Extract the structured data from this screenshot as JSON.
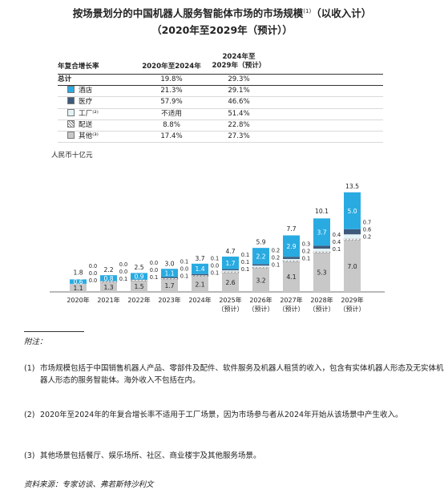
{
  "title_line1": "按场景划分的中国机器人服务智能体市场的市场规模",
  "title_sup": "(1)",
  "title_tail": "（以收入计）",
  "title_line2": "（2020年至2029年（预计））",
  "cagr_table": {
    "col0": "年复合增长率",
    "col1": "2020年至2024年",
    "col2_a": "2024年至",
    "col2_b": "2029年（预计）",
    "rows": [
      {
        "label": "总计",
        "v1": "19.8%",
        "v2": "29.3%"
      },
      {
        "label": "酒店",
        "v1": "21.3%",
        "v2": "29.1%",
        "color": "#29abe2"
      },
      {
        "label": "医疗",
        "v1": "57.9%",
        "v2": "46.6%",
        "color": "#3e5a7c"
      },
      {
        "label": "工厂⁽²⁾",
        "v1": "不适用",
        "v2": "51.4%",
        "color": "#e4f3f6"
      },
      {
        "label": "配送",
        "v1": "8.8%",
        "v2": "22.8%",
        "pattern": "hatch"
      },
      {
        "label": "其他⁽³⁾",
        "v1": "17.4%",
        "v2": "27.3%",
        "color": "#c8c8c8"
      }
    ]
  },
  "chart_data": {
    "type": "bar",
    "stacked": true,
    "ylabel": "人民币十亿元",
    "categories": [
      "2020年",
      "2021年",
      "2022年",
      "2023年",
      "2024年",
      "2025年",
      "2026年",
      "2027年",
      "2028年",
      "2029年"
    ],
    "categories_sub": [
      "",
      "",
      "",
      "",
      "",
      "（预计）",
      "（预计）",
      "（预计）",
      "（预计）",
      "（预计）"
    ],
    "totals": [
      1.8,
      2.2,
      2.5,
      3.0,
      3.7,
      4.7,
      5.9,
      7.7,
      10.1,
      13.5
    ],
    "series": [
      {
        "name": "其他",
        "color": "#c8c8c8",
        "values": [
          1.1,
          1.3,
          1.5,
          1.7,
          2.1,
          2.6,
          3.2,
          4.1,
          5.3,
          7.0
        ]
      },
      {
        "name": "配送",
        "pattern": "hatch",
        "values": [
          0.0,
          0.1,
          0.1,
          0.1,
          0.1,
          0.1,
          0.1,
          0.1,
          0.1,
          0.2
        ]
      },
      {
        "name": "工厂",
        "color": "#e4f3f6",
        "values": [
          0.0,
          0.0,
          0.0,
          0.0,
          0.0,
          0.1,
          0.2,
          0.2,
          0.4,
          0.6
        ]
      },
      {
        "name": "医疗",
        "color": "#3e5a7c",
        "values": [
          0.0,
          0.0,
          0.0,
          0.1,
          0.1,
          0.1,
          0.2,
          0.3,
          0.4,
          0.7
        ]
      },
      {
        "name": "酒店",
        "color": "#29abe2",
        "values": [
          0.6,
          0.8,
          0.9,
          1.1,
          1.4,
          1.7,
          2.2,
          2.9,
          3.7,
          5.0
        ]
      }
    ],
    "value_labels": [
      [
        1.1,
        0.0,
        0.0,
        0.0,
        0.6
      ],
      [
        1.3,
        0.1,
        0.0,
        0.0,
        0.8
      ],
      [
        1.5,
        0.1,
        0.0,
        0.0,
        0.9
      ],
      [
        1.7,
        0.1,
        0.0,
        0.1,
        1.1
      ],
      [
        2.1,
        0.1,
        0.0,
        0.1,
        1.4
      ],
      [
        2.6,
        0.1,
        0.1,
        0.1,
        1.7
      ],
      [
        3.2,
        0.1,
        0.2,
        0.2,
        2.2
      ],
      [
        4.1,
        0.1,
        0.2,
        0.3,
        2.9
      ],
      [
        5.3,
        0.1,
        0.4,
        0.4,
        3.7
      ],
      [
        7.0,
        0.2,
        0.6,
        0.7,
        5.0
      ]
    ]
  },
  "notes_header": "附注：",
  "notes": [
    {
      "num": "(1)",
      "text": "市场规模包括于中国销售机器人产品、零部件及配件、软件服务及机器人租赁的收入，包含有实体机器人形态及无实体机器人形态的服务智能体。海外收入不包括在内。"
    },
    {
      "num": "(2)",
      "text": "2020年至2024年的年复合增长率不适用于工厂场景，因为市场参与者从2024年开始从该场景中产生收入。"
    },
    {
      "num": "(3)",
      "text": "其他场景包括餐厅、娱乐场所、社区、商业楼宇及其他服务场景。"
    }
  ],
  "source": "资料来源：专家访谈、弗若斯特沙利文"
}
